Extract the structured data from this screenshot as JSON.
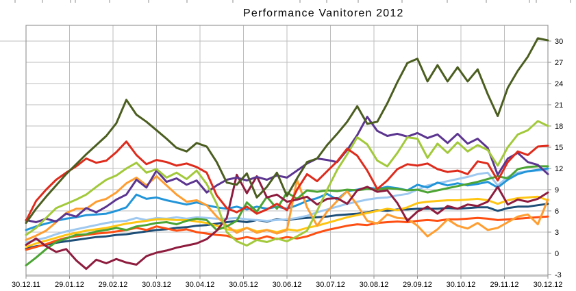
{
  "title": "Performance Vanitoren 2012",
  "axes": {
    "x_tick_labels": [
      "30.12.11",
      "29.01.12",
      "29.02.12",
      "30.03.12",
      "30.04.12",
      "30.05.12",
      "30.06.12",
      "30.07.12",
      "30.08.12",
      "29.09.12",
      "30.10.12",
      "29.11.12",
      "30.12.12"
    ],
    "y_tick_labels": [
      "-3",
      "0",
      "3",
      "6",
      "9",
      "12",
      "15",
      "18",
      "21",
      "24",
      "27",
      "30"
    ]
  },
  "colors": {
    "grid": "#BDBDBD",
    "border": "#9A9A9A",
    "tick": "#8C8C8C",
    "background": "#FFFFFF"
  },
  "top_edge_ticks": [
    22,
    62,
    103,
    110,
    160,
    217,
    273,
    340,
    438,
    477,
    523,
    587,
    653,
    710,
    773,
    783,
    833
  ],
  "chart_data": {
    "type": "line",
    "title": "Performance Vanitoren 2012",
    "xlabel": "",
    "ylabel": "",
    "x_tick_labels": [
      "30.12.11",
      "29.01.12",
      "29.02.12",
      "30.03.12",
      "30.04.12",
      "30.05.12",
      "30.06.12",
      "30.07.12",
      "30.08.12",
      "29.09.12",
      "30.10.12",
      "29.11.12",
      "30.12.12"
    ],
    "y_ticks": [
      -3,
      0,
      3,
      6,
      9,
      12,
      15,
      18,
      21,
      24,
      27,
      30
    ],
    "ylim": [
      -3,
      32.2
    ],
    "grid": true,
    "legend_position": "none",
    "y_axis_side": "right",
    "points_per_series": 53,
    "series": [
      {
        "name": "navy",
        "color": "#1D4E77",
        "values": [
          0.7,
          1.0,
          1.2,
          1.5,
          1.7,
          1.9,
          2.1,
          2.3,
          2.4,
          2.6,
          2.7,
          2.9,
          3.1,
          3.3,
          3.4,
          3.6,
          3.7,
          3.9,
          4.0,
          4.2,
          4.4,
          4.6,
          4.4,
          4.7,
          4.5,
          4.8,
          4.7,
          4.9,
          5.0,
          5.1,
          5.2,
          5.4,
          5.5,
          5.6,
          5.8,
          6.1,
          6.0,
          6.2,
          6.2,
          6.3,
          6.3,
          6.3,
          6.4,
          6.3,
          6.4,
          6.5,
          6.5,
          6.0,
          6.4,
          6.6,
          6.6,
          6.8,
          7.0
        ]
      },
      {
        "name": "light-blue",
        "color": "#9EC8EF",
        "values": [
          1.5,
          1.9,
          2.2,
          2.7,
          3.1,
          3.4,
          3.7,
          4.0,
          4.3,
          4.5,
          4.6,
          5.0,
          4.7,
          5.0,
          4.9,
          5.1,
          4.9,
          5.1,
          5.0,
          4.9,
          4.9,
          5.0,
          4.8,
          4.7,
          4.6,
          4.7,
          4.8,
          5.0,
          5.3,
          5.8,
          6.2,
          6.6,
          7.0,
          7.3,
          7.6,
          7.8,
          7.9,
          8.2,
          8.4,
          9.0,
          9.6,
          9.9,
          10.2,
          10.5,
          10.8,
          11.2,
          11.4,
          9.6,
          10.8,
          11.4,
          11.6,
          11.7,
          11.8
        ]
      },
      {
        "name": "medium-blue",
        "color": "#2295D9",
        "values": [
          3.3,
          3.8,
          4.2,
          4.6,
          4.9,
          5.1,
          5.4,
          5.5,
          5.6,
          6.0,
          6.5,
          8.3,
          7.7,
          7.9,
          7.5,
          7.2,
          6.9,
          7.2,
          6.8,
          6.5,
          6.3,
          6.6,
          6.2,
          6.6,
          6.3,
          6.6,
          6.3,
          6.8,
          7.4,
          7.8,
          8.4,
          7.6,
          8.8,
          9.0,
          9.3,
          9.1,
          9.4,
          9.2,
          8.9,
          9.7,
          9.3,
          10.0,
          9.6,
          9.9,
          9.6,
          9.8,
          10.1,
          9.3,
          10.4,
          11.2,
          11.6,
          11.8,
          12.0
        ]
      },
      {
        "name": "gold",
        "color": "#FFC513",
        "values": [
          0.9,
          1.4,
          1.8,
          2.2,
          2.6,
          2.9,
          3.2,
          3.4,
          3.6,
          3.9,
          4.2,
          4.4,
          4.6,
          4.8,
          4.8,
          4.7,
          4.7,
          4.5,
          4.3,
          3.9,
          3.4,
          3.2,
          3.6,
          3.1,
          3.3,
          3.0,
          3.4,
          3.2,
          3.6,
          3.9,
          4.3,
          4.7,
          5.1,
          5.4,
          5.7,
          6.0,
          6.3,
          6.1,
          6.5,
          7.1,
          7.3,
          7.4,
          7.5,
          7.5,
          7.6,
          7.7,
          7.5,
          7.0,
          7.5,
          7.8,
          7.9,
          8.0,
          7.5
        ]
      },
      {
        "name": "vermilion",
        "color": "#FF4E11",
        "values": [
          0.5,
          0.9,
          1.3,
          1.8,
          2.2,
          2.4,
          2.6,
          2.8,
          2.9,
          3.1,
          3.3,
          3.6,
          3.3,
          3.8,
          3.5,
          3.2,
          3.4,
          3.0,
          2.8,
          2.6,
          2.5,
          2.0,
          2.3,
          2.0,
          2.4,
          2.0,
          2.3,
          2.1,
          2.4,
          2.9,
          3.3,
          3.6,
          3.9,
          4.1,
          4.0,
          4.3,
          4.4,
          4.5,
          4.4,
          4.6,
          4.7,
          4.6,
          4.8,
          4.8,
          4.9,
          5.0,
          4.9,
          4.7,
          4.8,
          4.9,
          5.0,
          5.1,
          5.2
        ]
      },
      {
        "name": "orange",
        "color": "#FF9D30",
        "values": [
          1.9,
          2.5,
          3.2,
          4.4,
          5.7,
          6.3,
          6.3,
          7.3,
          7.7,
          8.6,
          9.9,
          10.7,
          9.6,
          10.9,
          9.6,
          8.3,
          7.3,
          7.5,
          6.8,
          5.2,
          3.9,
          2.9,
          3.6,
          2.9,
          3.3,
          2.8,
          3.3,
          10.4,
          6.5,
          3.9,
          5.9,
          7.4,
          8.8,
          6.8,
          4.6,
          4.2,
          5.5,
          5.0,
          4.9,
          3.9,
          2.4,
          3.4,
          4.8,
          3.9,
          3.5,
          4.3,
          3.3,
          3.6,
          4.4,
          5.2,
          5.5,
          4.1,
          7.6
        ]
      },
      {
        "name": "green",
        "color": "#4BA433",
        "values": [
          -1.7,
          -0.6,
          0.6,
          1.6,
          2.1,
          2.6,
          2.7,
          3.1,
          3.3,
          3.6,
          3.3,
          3.8,
          4.0,
          4.3,
          4.4,
          4.1,
          4.6,
          4.9,
          4.7,
          3.3,
          3.8,
          4.6,
          7.2,
          5.9,
          8.0,
          6.3,
          8.6,
          7.7,
          8.9,
          8.7,
          8.9,
          8.8,
          9.0,
          8.9,
          9.1,
          9.0,
          9.2,
          9.1,
          8.9,
          9.0,
          8.6,
          8.9,
          9.2,
          9.5,
          9.8,
          10.1,
          10.5,
          10.9,
          10.6,
          11.9,
          12.2,
          12.3,
          12.3
        ]
      },
      {
        "name": "maroon",
        "color": "#8E1C3E",
        "values": [
          1.2,
          2.1,
          1.0,
          0.2,
          0.6,
          -1.0,
          -2.2,
          -0.9,
          -1.4,
          -0.8,
          -1.3,
          -1.6,
          -0.4,
          0.1,
          0.4,
          0.8,
          1.1,
          1.4,
          2.0,
          3.2,
          5.0,
          11.1,
          8.5,
          10.9,
          7.9,
          8.3,
          7.3,
          7.6,
          8.0,
          6.9,
          7.7,
          7.8,
          7.0,
          8.9,
          9.4,
          8.7,
          8.9,
          7.1,
          4.6,
          5.9,
          6.6,
          5.6,
          6.7,
          6.3,
          6.9,
          6.7,
          7.3,
          9.4,
          6.9,
          7.6,
          7.3,
          7.7,
          8.6
        ]
      },
      {
        "name": "purple",
        "color": "#5B3590",
        "values": [
          4.7,
          4.4,
          4.9,
          4.5,
          5.6,
          5.2,
          6.4,
          5.8,
          6.6,
          7.6,
          8.3,
          10.4,
          9.3,
          11.7,
          10.1,
          10.6,
          9.7,
          10.3,
          8.6,
          9.6,
          10.4,
          10.7,
          10.3,
          10.8,
          10.4,
          11.0,
          10.7,
          11.7,
          12.7,
          13.4,
          13.2,
          12.9,
          14.6,
          16.7,
          19.3,
          17.3,
          16.6,
          16.9,
          16.5,
          17.0,
          16.3,
          16.8,
          15.6,
          16.9,
          15.5,
          16.2,
          14.9,
          11.1,
          13.4,
          14.2,
          12.9,
          12.5,
          11.2
        ]
      },
      {
        "name": "lime",
        "color": "#A2C93A",
        "values": [
          2.6,
          3.6,
          5.0,
          6.4,
          7.0,
          7.6,
          8.3,
          9.4,
          10.4,
          11.0,
          12.0,
          12.8,
          11.4,
          11.9,
          10.7,
          11.4,
          10.5,
          11.7,
          9.8,
          7.0,
          3.0,
          1.7,
          1.1,
          1.9,
          1.6,
          2.1,
          1.7,
          2.4,
          3.2,
          6.0,
          9.0,
          11.8,
          14.0,
          16.4,
          15.4,
          13.1,
          12.3,
          14.2,
          16.4,
          16.2,
          13.5,
          15.5,
          14.2,
          15.7,
          14.4,
          15.3,
          14.6,
          12.4,
          15.0,
          16.8,
          17.4,
          18.7,
          18.0
        ]
      },
      {
        "name": "red",
        "color": "#DE2B1C",
        "values": [
          4.6,
          7.4,
          9.0,
          10.4,
          11.4,
          12.3,
          13.4,
          12.8,
          13.1,
          14.3,
          15.8,
          13.9,
          12.6,
          13.2,
          12.9,
          12.4,
          12.7,
          12.2,
          11.4,
          8.2,
          6.4,
          5.8,
          6.6,
          5.6,
          6.2,
          7.0,
          6.1,
          9.0,
          11.2,
          10.2,
          11.6,
          13.0,
          14.8,
          13.8,
          11.7,
          9.1,
          10.3,
          11.9,
          12.6,
          12.4,
          12.7,
          11.9,
          11.5,
          11.7,
          11.2,
          13.0,
          12.7,
          10.3,
          12.9,
          14.4,
          13.9,
          15.1,
          15.2
        ]
      },
      {
        "name": "dark-olive",
        "color": "#4B5E20",
        "values": [
          4.3,
          6.3,
          8.0,
          9.6,
          11.2,
          12.6,
          14.0,
          15.3,
          16.6,
          18.4,
          21.7,
          19.6,
          18.6,
          17.4,
          16.2,
          14.9,
          14.4,
          15.6,
          15.1,
          12.9,
          10.0,
          9.7,
          11.3,
          7.9,
          9.4,
          11.4,
          8.1,
          10.6,
          12.9,
          13.4,
          15.3,
          16.9,
          18.6,
          20.8,
          18.3,
          18.6,
          21.2,
          24.2,
          26.9,
          27.5,
          24.3,
          26.6,
          24.3,
          26.3,
          24.3,
          26.0,
          22.5,
          19.4,
          23.4,
          25.8,
          27.8,
          30.4,
          30.1
        ]
      }
    ]
  }
}
